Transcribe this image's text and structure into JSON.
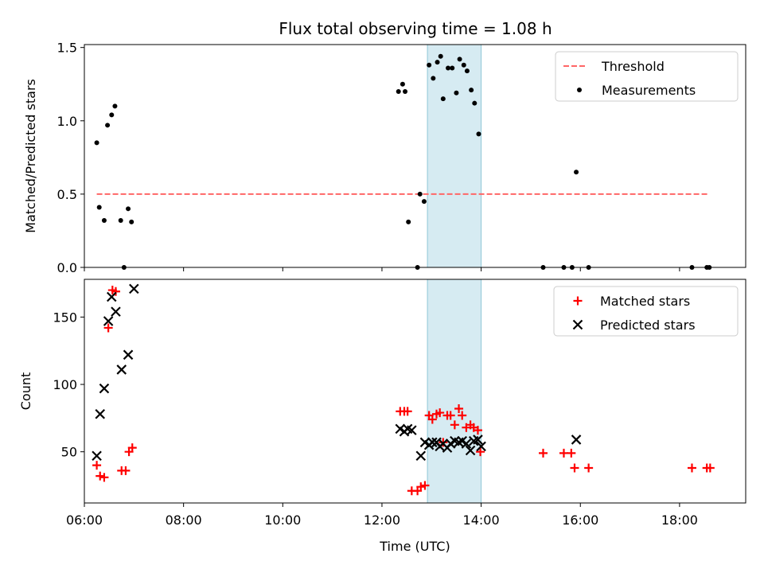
{
  "chart_data": [
    {
      "type": "scatter",
      "title": "Flux total observing time = 1.08 h",
      "xlabel": "",
      "ylabel": "Matched/Predicted stars",
      "xlim": [
        "06:00",
        "19:20"
      ],
      "ylim": [
        0,
        1.52
      ],
      "yticks": [
        "0.0",
        "0.5",
        "1.0",
        "1.5"
      ],
      "highlight_span": {
        "start": "12:55",
        "end": "14:00",
        "color": "#add8e6"
      },
      "legend": "upper right",
      "series": [
        {
          "name": "Threshold",
          "style": "dashed-line",
          "color": "#ff6666",
          "points": [
            [
              "06:15",
              0.5
            ],
            [
              "18:35",
              0.5
            ]
          ]
        },
        {
          "name": "Measurements",
          "style": "dot",
          "color": "#000000",
          "points": [
            [
              "06:15",
              0.85
            ],
            [
              "06:18",
              0.41
            ],
            [
              "06:24",
              0.32
            ],
            [
              "06:28",
              0.97
            ],
            [
              "06:33",
              1.04
            ],
            [
              "06:37",
              1.1
            ],
            [
              "06:44",
              0.32
            ],
            [
              "06:48",
              0.0
            ],
            [
              "06:53",
              0.4
            ],
            [
              "06:57",
              0.31
            ],
            [
              "12:20",
              1.2
            ],
            [
              "12:25",
              1.25
            ],
            [
              "12:28",
              1.2
            ],
            [
              "12:32",
              0.31
            ],
            [
              "12:43",
              0.0
            ],
            [
              "12:46",
              0.5
            ],
            [
              "12:51",
              0.45
            ],
            [
              "12:57",
              1.38
            ],
            [
              "13:02",
              1.29
            ],
            [
              "13:07",
              1.4
            ],
            [
              "13:11",
              1.44
            ],
            [
              "13:14",
              1.15
            ],
            [
              "13:20",
              1.36
            ],
            [
              "13:25",
              1.36
            ],
            [
              "13:30",
              1.19
            ],
            [
              "13:34",
              1.42
            ],
            [
              "13:39",
              1.38
            ],
            [
              "13:43",
              1.34
            ],
            [
              "13:48",
              1.21
            ],
            [
              "13:52",
              1.12
            ],
            [
              "13:57",
              0.91
            ],
            [
              "15:15",
              0.0
            ],
            [
              "15:40",
              0.0
            ],
            [
              "15:50",
              0.0
            ],
            [
              "15:55",
              0.65
            ],
            [
              "16:10",
              0.0
            ],
            [
              "18:15",
              0.0
            ],
            [
              "18:33",
              0.0
            ],
            [
              "18:36",
              0.0
            ]
          ]
        }
      ]
    },
    {
      "type": "scatter",
      "title": "",
      "xlabel": "Time (UTC)",
      "ylabel": "Count",
      "xlim": [
        "06:00",
        "19:20"
      ],
      "ylim": [
        12,
        178
      ],
      "xticks": [
        "06:00",
        "08:00",
        "10:00",
        "12:00",
        "14:00",
        "16:00",
        "18:00"
      ],
      "yticks": [
        "50",
        "100",
        "150"
      ],
      "highlight_span": {
        "start": "12:55",
        "end": "14:00",
        "color": "#add8e6"
      },
      "legend": "upper right",
      "series": [
        {
          "name": "Matched stars",
          "style": "plus",
          "color": "#ff0000",
          "points": [
            [
              "06:15",
              40
            ],
            [
              "06:19",
              32
            ],
            [
              "06:24",
              31
            ],
            [
              "06:29",
              142
            ],
            [
              "06:34",
              170
            ],
            [
              "06:38",
              169
            ],
            [
              "06:45",
              36
            ],
            [
              "06:50",
              36
            ],
            [
              "06:54",
              50
            ],
            [
              "06:58",
              53
            ],
            [
              "12:22",
              80
            ],
            [
              "12:27",
              80
            ],
            [
              "12:31",
              80
            ],
            [
              "12:36",
              21
            ],
            [
              "12:43",
              21
            ],
            [
              "12:47",
              24
            ],
            [
              "12:52",
              25
            ],
            [
              "12:57",
              77
            ],
            [
              "13:01",
              74
            ],
            [
              "13:06",
              78
            ],
            [
              "13:10",
              79
            ],
            [
              "13:14",
              57
            ],
            [
              "13:19",
              77
            ],
            [
              "13:23",
              77
            ],
            [
              "13:28",
              70
            ],
            [
              "13:33",
              82
            ],
            [
              "13:37",
              77
            ],
            [
              "13:42",
              68
            ],
            [
              "13:47",
              70
            ],
            [
              "13:51",
              68
            ],
            [
              "13:56",
              66
            ],
            [
              "13:59",
              50
            ],
            [
              "15:15",
              49
            ],
            [
              "15:40",
              49
            ],
            [
              "15:49",
              49
            ],
            [
              "15:53",
              38
            ],
            [
              "16:10",
              38
            ],
            [
              "18:15",
              38
            ],
            [
              "18:33",
              38
            ],
            [
              "18:37",
              38
            ]
          ]
        },
        {
          "name": "Predicted stars",
          "style": "cross",
          "color": "#000000",
          "points": [
            [
              "06:15",
              47
            ],
            [
              "06:19",
              78
            ],
            [
              "06:24",
              97
            ],
            [
              "06:29",
              147
            ],
            [
              "06:33",
              165
            ],
            [
              "06:38",
              154
            ],
            [
              "06:45",
              111
            ],
            [
              "06:53",
              122
            ],
            [
              "07:00",
              171
            ],
            [
              "12:22",
              67
            ],
            [
              "12:27",
              65
            ],
            [
              "12:31",
              67
            ],
            [
              "12:36",
              66
            ],
            [
              "12:47",
              47
            ],
            [
              "12:52",
              57
            ],
            [
              "12:57",
              55
            ],
            [
              "13:01",
              57
            ],
            [
              "13:06",
              57
            ],
            [
              "13:10",
              54
            ],
            [
              "13:14",
              56
            ],
            [
              "13:19",
              53
            ],
            [
              "13:23",
              56
            ],
            [
              "13:28",
              58
            ],
            [
              "13:33",
              57
            ],
            [
              "13:37",
              58
            ],
            [
              "13:42",
              56
            ],
            [
              "13:47",
              51
            ],
            [
              "13:51",
              58
            ],
            [
              "13:56",
              59
            ],
            [
              "14:00",
              54
            ],
            [
              "15:55",
              59
            ]
          ]
        }
      ]
    }
  ]
}
